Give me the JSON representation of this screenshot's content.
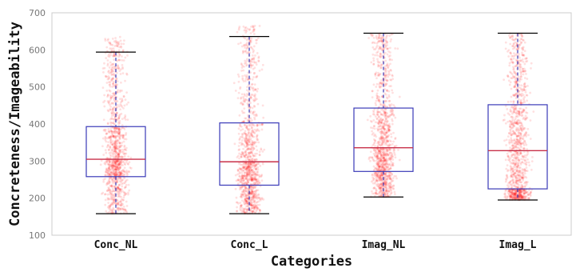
{
  "chart_data": {
    "type": "box",
    "title": "",
    "xlabel": "Categories",
    "ylabel": "Concreteness/Imageability",
    "ylim": [
      100,
      700
    ],
    "yticks": [
      100,
      200,
      300,
      400,
      500,
      600,
      700
    ],
    "grid": false,
    "colors": {
      "box": "#3a3ab8",
      "median": "#c8304a",
      "points": "#ff0000",
      "whisker": "#3a3ab8",
      "cap": "#000000"
    },
    "categories": [
      "Conc_NL",
      "Conc_L",
      "Imag_NL",
      "Imag_L"
    ],
    "boxes": [
      {
        "category": "Conc_NL",
        "whisker_low": 158,
        "q1": 258,
        "median": 305,
        "q3": 393,
        "whisker_high": 594,
        "max_point": 635
      },
      {
        "category": "Conc_L",
        "whisker_low": 158,
        "q1": 235,
        "median": 298,
        "q3": 403,
        "whisker_high": 636,
        "max_point": 665
      },
      {
        "category": "Imag_NL",
        "whisker_low": 203,
        "q1": 272,
        "median": 336,
        "q3": 443,
        "whisker_high": 645,
        "max_point": 645
      },
      {
        "category": "Imag_L",
        "whisker_low": 195,
        "q1": 225,
        "median": 328,
        "q3": 452,
        "whisker_high": 645,
        "max_point": 645
      }
    ]
  }
}
